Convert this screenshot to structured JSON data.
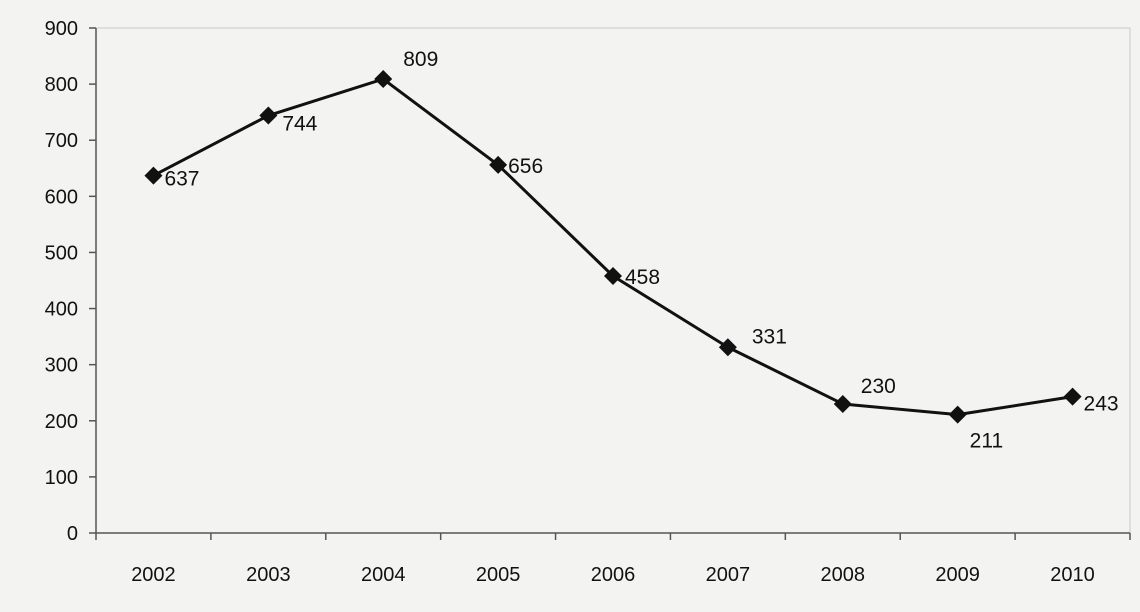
{
  "chart_data": {
    "type": "line",
    "title": "",
    "xlabel": "",
    "ylabel": "",
    "categories": [
      "2002",
      "2003",
      "2004",
      "2005",
      "2006",
      "2007",
      "2008",
      "2009",
      "2010"
    ],
    "series": [
      {
        "values": [
          637,
          744,
          809,
          656,
          458,
          331,
          230,
          211,
          243
        ]
      }
    ],
    "data_labels": [
      "637",
      "744",
      "809",
      "656",
      "458",
      "331",
      "230",
      "211",
      "243"
    ],
    "y_ticks": [
      "0",
      "100",
      "200",
      "300",
      "400",
      "500",
      "600",
      "700",
      "800",
      "900"
    ],
    "ylim": [
      0,
      900
    ],
    "grid": false,
    "legend": "none",
    "marker": "diamond",
    "colors": {
      "line": "#111111",
      "background": "#f3f4f2",
      "axis": "#555555"
    }
  }
}
